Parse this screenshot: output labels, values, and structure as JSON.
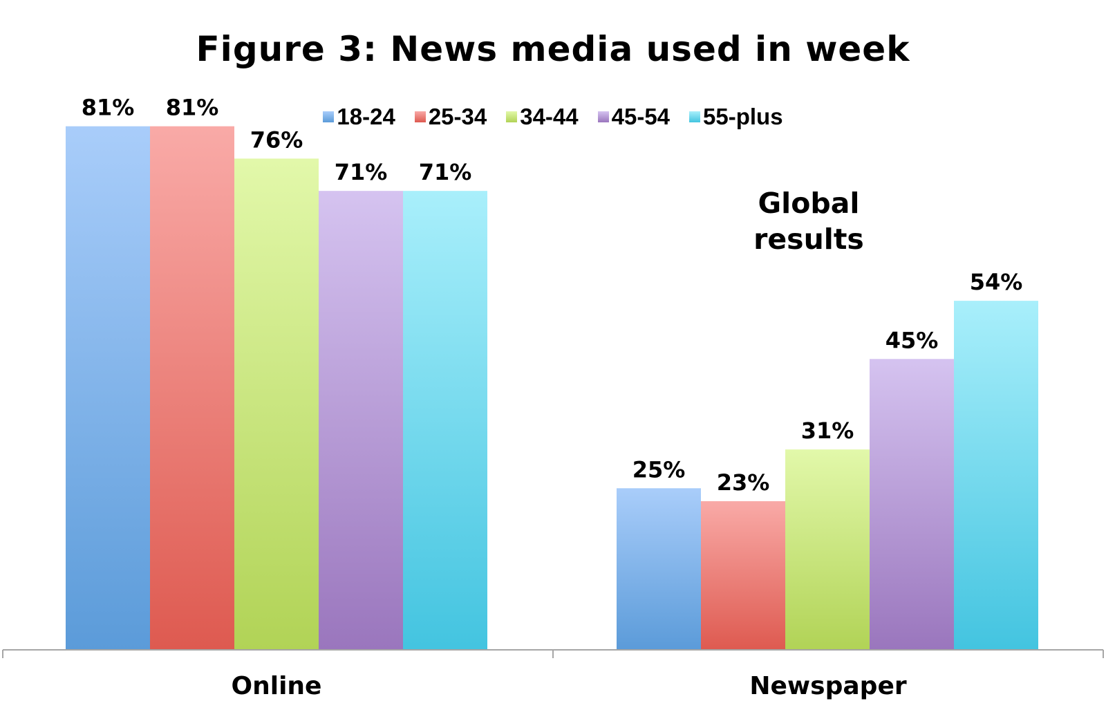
{
  "chart_data": {
    "type": "bar",
    "title": "Figure 3: News media used in week",
    "annotation": "Global results",
    "categories": [
      "Online",
      "Newspaper"
    ],
    "ylim": [
      0,
      100
    ],
    "grid": false,
    "legend_position": "top",
    "series": [
      {
        "name": "18-24",
        "values": [
          81,
          25
        ],
        "labels": [
          "81%",
          "25%"
        ],
        "color_top": "#a9cdfa",
        "color_bottom": "#5b9bd9"
      },
      {
        "name": "25-34",
        "values": [
          81,
          23
        ],
        "labels": [
          "81%",
          "23%"
        ],
        "color_top": "#f9aaa7",
        "color_bottom": "#de5a50"
      },
      {
        "name": "34-44",
        "values": [
          76,
          31
        ],
        "labels": [
          "76%",
          "31%"
        ],
        "color_top": "#e2f8aa",
        "color_bottom": "#b1d356"
      },
      {
        "name": "45-54",
        "values": [
          71,
          45
        ],
        "labels": [
          "71%",
          "45%"
        ],
        "color_top": "#d5c3f0",
        "color_bottom": "#9a76bd"
      },
      {
        "name": "55-plus",
        "values": [
          71,
          54
        ],
        "labels": [
          "71%",
          "54%"
        ],
        "color_top": "#a9effb",
        "color_bottom": "#43c4e0"
      }
    ]
  }
}
